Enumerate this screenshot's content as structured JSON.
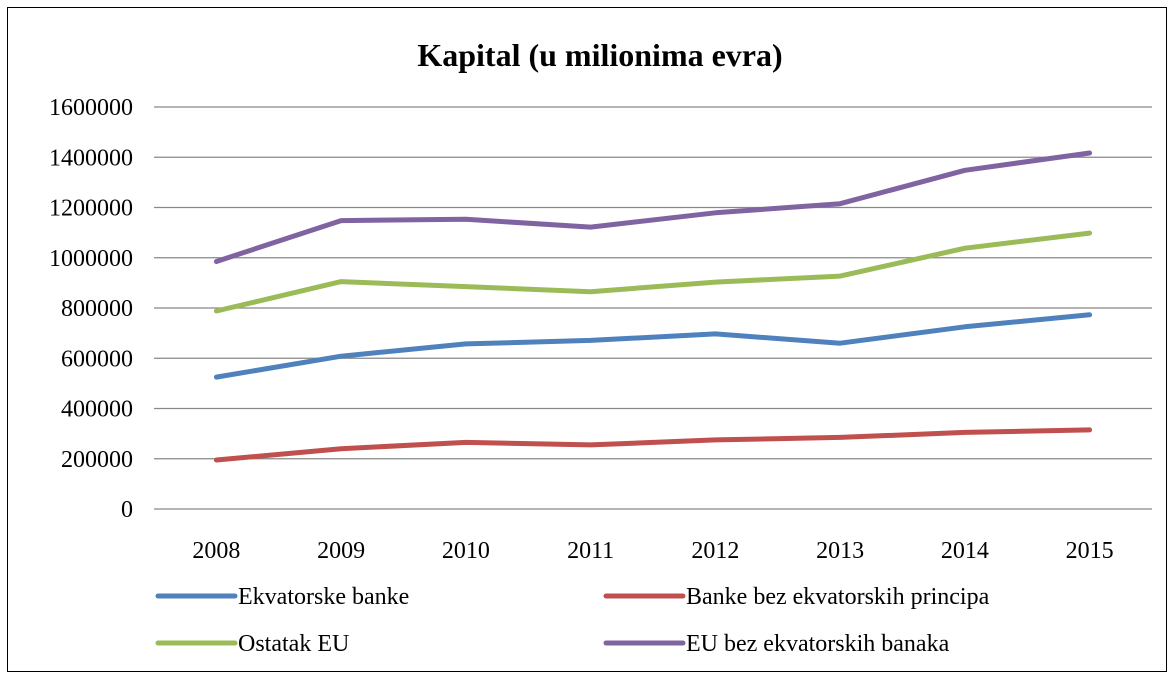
{
  "chart_data": {
    "type": "line",
    "title": "Kapital (u milionima evra)",
    "xlabel": "",
    "ylabel": "",
    "categories": [
      "2008",
      "2009",
      "2010",
      "2011",
      "2012",
      "2013",
      "2014",
      "2015"
    ],
    "ylim": [
      0,
      1600000
    ],
    "yticks": [
      0,
      200000,
      400000,
      600000,
      800000,
      1000000,
      1200000,
      1400000,
      1600000
    ],
    "grid": true,
    "legend_position": "bottom",
    "series": [
      {
        "name": "Ekvatorske banke",
        "color": "#4F81BD",
        "values": [
          525000,
          608000,
          657000,
          671000,
          697000,
          660000,
          725000,
          773000
        ]
      },
      {
        "name": "Banke bez ekvatorskih principa",
        "color": "#C0504D",
        "values": [
          195000,
          240000,
          265000,
          255000,
          275000,
          285000,
          305000,
          315000
        ]
      },
      {
        "name": "Ostatak EU",
        "color": "#9BBB59",
        "values": [
          788000,
          905000,
          885000,
          865000,
          903000,
          927000,
          1038000,
          1098000
        ]
      },
      {
        "name": "EU bez ekvatorskih banaka",
        "color": "#8064A2",
        "values": [
          985000,
          1148000,
          1153000,
          1122000,
          1179000,
          1215000,
          1348000,
          1417000
        ]
      }
    ]
  }
}
